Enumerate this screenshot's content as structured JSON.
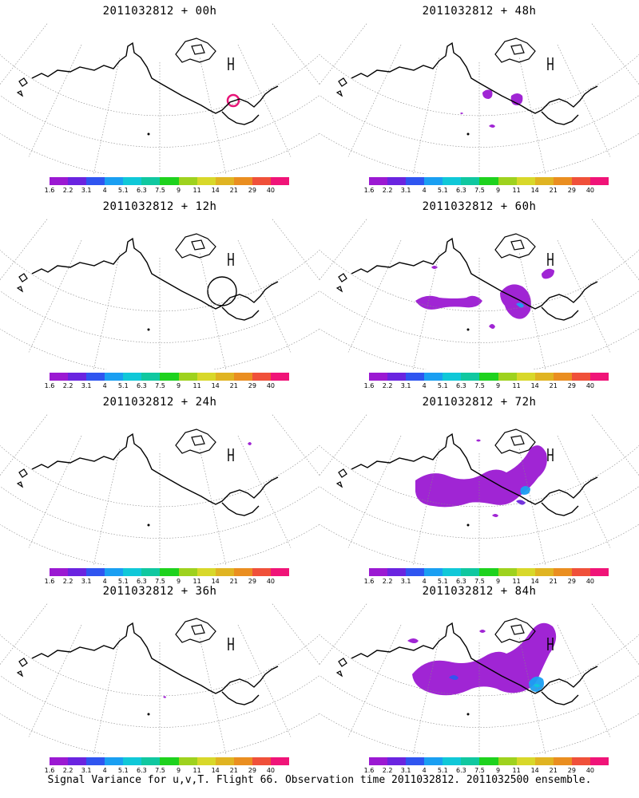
{
  "panels": [
    {
      "title": "2011032812 + 00h"
    },
    {
      "title": "2011032812 + 48h"
    },
    {
      "title": "2011032812 + 12h"
    },
    {
      "title": "2011032812 + 60h"
    },
    {
      "title": "2011032812 + 24h"
    },
    {
      "title": "2011032812 + 72h"
    },
    {
      "title": "2011032812 + 36h"
    },
    {
      "title": "2011032812 + 84h"
    }
  ],
  "colorbar": {
    "labels": [
      "1.6",
      "2.2",
      "3.1",
      "4",
      "5.1",
      "6.3",
      "7.5",
      "9",
      "11",
      "14",
      "21",
      "29",
      "40"
    ],
    "colors": [
      "#9b19d2",
      "#6a24e0",
      "#2f55f0",
      "#1a9ff2",
      "#10c8d8",
      "#10c8a0",
      "#1ed21e",
      "#9ed21e",
      "#d8d82a",
      "#e0b422",
      "#ea8e20",
      "#f0503a",
      "#f01478"
    ]
  },
  "footer": "Signal Variance for u,v,T. Flight 66. Observation time 2011032812. 2011032500 ensemble."
}
